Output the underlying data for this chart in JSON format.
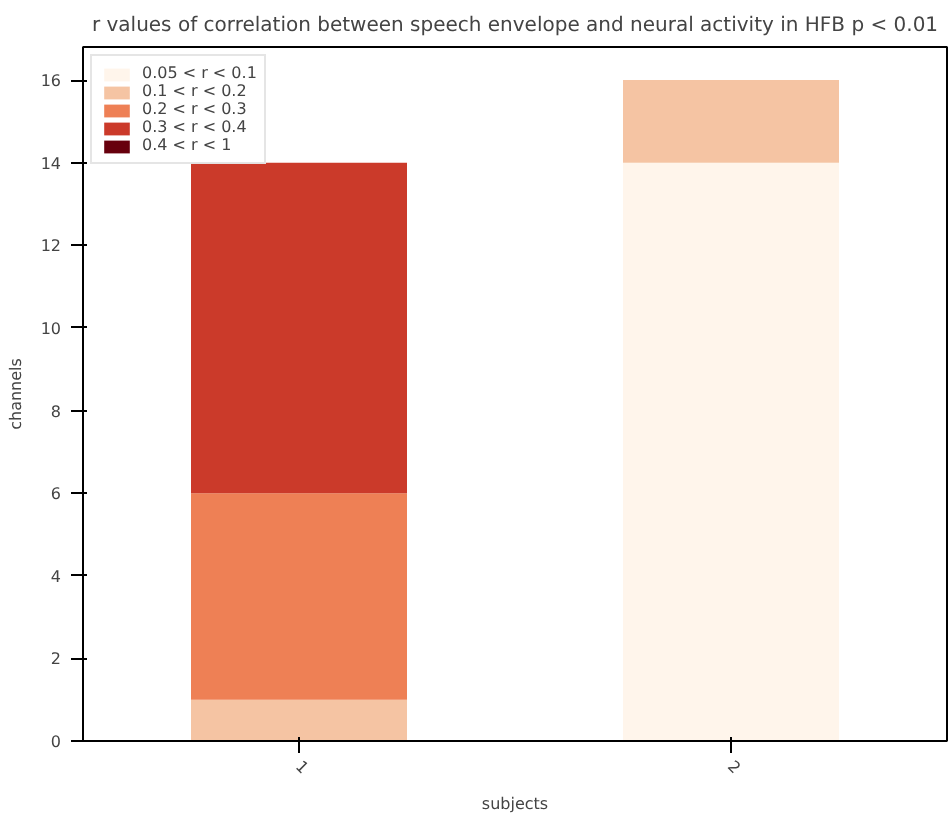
{
  "chart_data": {
    "type": "bar",
    "stacked": true,
    "title": "r values of correlation between speech envelope and neural activity in HFB p < 0.01",
    "xlabel": "subjects",
    "ylabel": "channels",
    "categories": [
      "1",
      "2"
    ],
    "series": [
      {
        "name": "0.05 < r < 0.1",
        "color": "#fff5eb",
        "values": [
          0,
          14
        ]
      },
      {
        "name": "0.1 < r < 0.2",
        "color": "#f5c4a3",
        "values": [
          1,
          2
        ]
      },
      {
        "name": "0.2 < r < 0.3",
        "color": "#ee8055",
        "values": [
          5,
          0
        ]
      },
      {
        "name": "0.3 < r < 0.4",
        "color": "#cb3a2a",
        "values": [
          8,
          0
        ]
      },
      {
        "name": "0.4 < r < 1",
        "color": "#67000d",
        "values": [
          0,
          0
        ]
      }
    ],
    "ylim": [
      0,
      16.8
    ],
    "yticks": [
      0,
      2,
      4,
      6,
      8,
      10,
      12,
      14,
      16
    ],
    "grid": false,
    "legend": "top left"
  }
}
